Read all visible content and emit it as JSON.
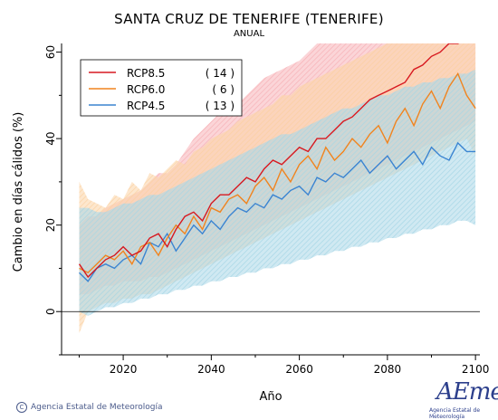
{
  "chart_data": {
    "type": "line",
    "title": "SANTA CRUZ DE TENERIFE (TENERIFE)",
    "subtitle": "ANUAL",
    "xlabel": "Año",
    "ylabel": "Cambio en días cálidos (%)",
    "xlim": [
      2006,
      2101
    ],
    "ylim": [
      -10,
      62
    ],
    "xticks": [
      2020,
      2040,
      2060,
      2080,
      2100
    ],
    "yticks": [
      0,
      20,
      40,
      60
    ],
    "zero_line": true,
    "legend_position": "top-left",
    "series": [
      {
        "name": "RCP8.5",
        "count_label": "( 14 )",
        "color": "#d71920",
        "band_color": "#f7b3b8",
        "x_start": 2010,
        "x_step": 2,
        "values": [
          11,
          8,
          10,
          12,
          13,
          15,
          13,
          14,
          17,
          18,
          15,
          19,
          22,
          23,
          21,
          25,
          27,
          27,
          29,
          31,
          30,
          33,
          35,
          34,
          36,
          38,
          37,
          40,
          40,
          42,
          44,
          45,
          47,
          49,
          50,
          51,
          52,
          53,
          56,
          57,
          59,
          60,
          62,
          62,
          63,
          64
        ],
        "band_high": [
          20,
          22,
          22,
          24,
          25,
          26,
          27,
          28,
          30,
          32,
          32,
          34,
          37,
          40,
          42,
          44,
          46,
          47,
          48,
          50,
          52,
          54,
          55,
          56,
          57,
          58,
          60,
          62,
          62,
          62,
          62,
          62,
          62,
          62,
          62,
          62,
          62,
          62,
          62,
          62,
          62,
          62,
          62,
          62,
          62,
          62
        ],
        "band_low": [
          4,
          4,
          5,
          6,
          6,
          7,
          7,
          7,
          8,
          8,
          9,
          10,
          11,
          12,
          13,
          14,
          15,
          16,
          17,
          18,
          19,
          20,
          21,
          22,
          23,
          24,
          25,
          26,
          27,
          28,
          29,
          30,
          31,
          32,
          33,
          34,
          35,
          36,
          37,
          38,
          39,
          40,
          41,
          42,
          43,
          44
        ]
      },
      {
        "name": "RCP6.0",
        "count_label": "(   6 )",
        "color": "#f0841f",
        "band_color": "#fbd3a6",
        "x_start": 2010,
        "x_step": 2,
        "values": [
          10,
          9,
          11,
          13,
          12,
          14,
          11,
          15,
          16,
          13,
          17,
          20,
          18,
          22,
          19,
          24,
          23,
          26,
          27,
          25,
          29,
          31,
          28,
          33,
          30,
          34,
          36,
          33,
          38,
          35,
          37,
          40,
          38,
          41,
          43,
          39,
          44,
          47,
          43,
          48,
          51,
          47,
          52,
          55,
          50,
          47
        ],
        "band_high": [
          30,
          26,
          25,
          24,
          27,
          26,
          30,
          28,
          32,
          31,
          33,
          35,
          34,
          37,
          38,
          40,
          41,
          42,
          44,
          45,
          46,
          47,
          48,
          50,
          50,
          52,
          53,
          54,
          55,
          56,
          57,
          58,
          59,
          60,
          61,
          62,
          62,
          62,
          62,
          62,
          62,
          62,
          62,
          62,
          62,
          62
        ],
        "band_low": [
          -5,
          0,
          1,
          2,
          2,
          3,
          3,
          4,
          4,
          5,
          6,
          7,
          8,
          9,
          10,
          11,
          12,
          13,
          14,
          15,
          16,
          17,
          18,
          19,
          20,
          21,
          22,
          23,
          24,
          25,
          26,
          27,
          28,
          29,
          30,
          31,
          32,
          33,
          34,
          35,
          36,
          37,
          38,
          39,
          40,
          36
        ]
      },
      {
        "name": "RCP4.5",
        "count_label": "( 13 )",
        "color": "#3b84d1",
        "band_color": "#a9d7e6",
        "x_start": 2010,
        "x_step": 2,
        "values": [
          9,
          7,
          10,
          11,
          10,
          12,
          13,
          11,
          16,
          15,
          18,
          14,
          17,
          20,
          18,
          21,
          19,
          22,
          24,
          23,
          25,
          24,
          27,
          26,
          28,
          29,
          27,
          31,
          30,
          32,
          31,
          33,
          35,
          32,
          34,
          36,
          33,
          35,
          37,
          34,
          38,
          36,
          35,
          39,
          37,
          37
        ],
        "band_high": [
          24,
          24,
          23,
          23,
          24,
          25,
          25,
          26,
          27,
          27,
          28,
          29,
          30,
          31,
          32,
          33,
          34,
          35,
          36,
          37,
          38,
          39,
          40,
          41,
          41,
          42,
          43,
          44,
          45,
          46,
          47,
          47,
          48,
          49,
          50,
          50,
          51,
          52,
          52,
          53,
          53,
          54,
          54,
          55,
          55,
          56
        ],
        "band_low": [
          0,
          -1,
          0,
          1,
          1,
          2,
          2,
          3,
          3,
          4,
          4,
          5,
          5,
          6,
          6,
          7,
          7,
          8,
          8,
          9,
          9,
          10,
          10,
          11,
          11,
          12,
          12,
          13,
          13,
          14,
          14,
          15,
          15,
          16,
          16,
          17,
          17,
          18,
          18,
          19,
          19,
          20,
          20,
          21,
          21,
          20
        ]
      }
    ]
  },
  "footer": {
    "credit": "Agencia Estatal de Meteorología",
    "copyright_symbol": "C"
  },
  "logo": {
    "text": "AEmet",
    "subtext": "Agencia Estatal de Meteorología"
  }
}
